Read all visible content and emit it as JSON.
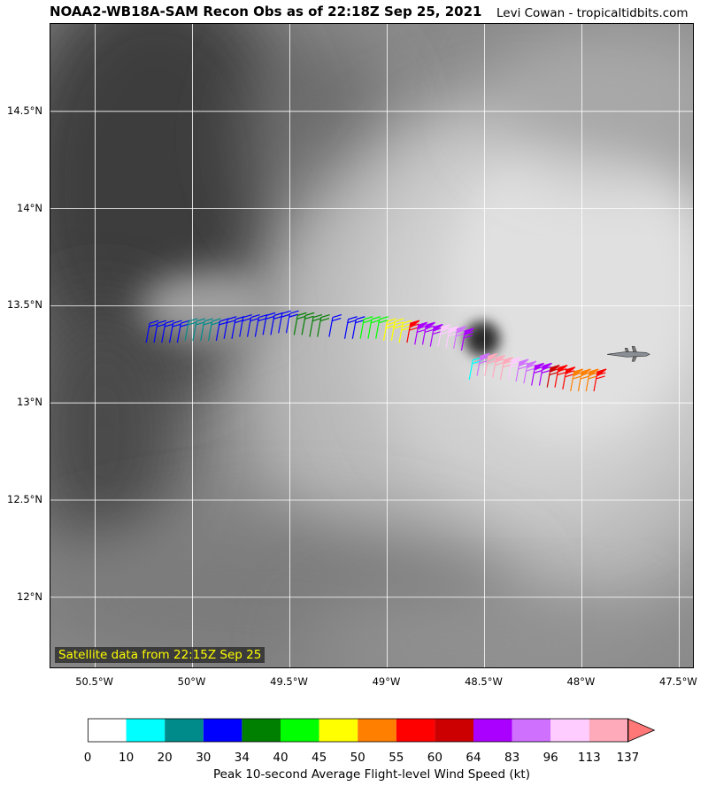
{
  "header": {
    "title": "NOAA2-WB18A-SAM Recon Obs as of 22:18Z Sep 25, 2021",
    "credit": "Levi Cowan - tropicaltidbits.com"
  },
  "map": {
    "satellite_note": "Satellite data from 22:15Z Sep 25",
    "lat_labels": [
      "14.5°N",
      "14°N",
      "13.5°N",
      "13°N",
      "12.5°N",
      "12°N"
    ],
    "lon_labels": [
      "50.5°W",
      "50°W",
      "49.5°W",
      "49°W",
      "48.5°W",
      "48°W",
      "47.5°W"
    ],
    "extent": {
      "lon_min": -50.73,
      "lon_max": -47.42,
      "lat_min": 11.63,
      "lat_max": 14.95
    },
    "grid": true,
    "eye_center": {
      "lon": -48.54,
      "lat": 13.33
    },
    "aircraft_icon": "aircraft-icon",
    "aircraft_position": {
      "lon": -47.77,
      "lat": 13.25
    }
  },
  "colorbar": {
    "title": "Peak 10-second Average Flight-level Wind Speed (kt)",
    "ticks": [
      "0",
      "10",
      "20",
      "30",
      "34",
      "40",
      "45",
      "50",
      "55",
      "60",
      "64",
      "83",
      "96",
      "113",
      "137"
    ],
    "colors": [
      "#ffffff",
      "#00ffff",
      "#008b8b",
      "#0000ff",
      "#008000",
      "#00ff00",
      "#ffff00",
      "#ff7f00",
      "#ff0000",
      "#cc0000",
      "#aa00ff",
      "#d070ff",
      "#ffccff",
      "#ffaabb",
      "#ff7777"
    ]
  },
  "chart_data": {
    "type": "wind_barbs",
    "observations": [
      {
        "lon": -50.22,
        "lat": 13.41,
        "bin": 3
      },
      {
        "lon": -50.18,
        "lat": 13.41,
        "bin": 3
      },
      {
        "lon": -50.14,
        "lat": 13.41,
        "bin": 3
      },
      {
        "lon": -50.1,
        "lat": 13.41,
        "bin": 3
      },
      {
        "lon": -50.06,
        "lat": 13.41,
        "bin": 3
      },
      {
        "lon": -50.02,
        "lat": 13.42,
        "bin": 2
      },
      {
        "lon": -49.98,
        "lat": 13.42,
        "bin": 2
      },
      {
        "lon": -49.94,
        "lat": 13.42,
        "bin": 2
      },
      {
        "lon": -49.9,
        "lat": 13.42,
        "bin": 2
      },
      {
        "lon": -49.86,
        "lat": 13.42,
        "bin": 3
      },
      {
        "lon": -49.82,
        "lat": 13.43,
        "bin": 3
      },
      {
        "lon": -49.78,
        "lat": 13.43,
        "bin": 3
      },
      {
        "lon": -49.74,
        "lat": 13.44,
        "bin": 3
      },
      {
        "lon": -49.7,
        "lat": 13.44,
        "bin": 3
      },
      {
        "lon": -49.66,
        "lat": 13.44,
        "bin": 3
      },
      {
        "lon": -49.62,
        "lat": 13.45,
        "bin": 3
      },
      {
        "lon": -49.58,
        "lat": 13.45,
        "bin": 3
      },
      {
        "lon": -49.54,
        "lat": 13.46,
        "bin": 3
      },
      {
        "lon": -49.5,
        "lat": 13.46,
        "bin": 3
      },
      {
        "lon": -49.46,
        "lat": 13.45,
        "bin": 4
      },
      {
        "lon": -49.42,
        "lat": 13.45,
        "bin": 4
      },
      {
        "lon": -49.38,
        "lat": 13.44,
        "bin": 4
      },
      {
        "lon": -49.34,
        "lat": 13.44,
        "bin": 4
      },
      {
        "lon": -49.28,
        "lat": 13.44,
        "bin": 3
      },
      {
        "lon": -49.2,
        "lat": 13.43,
        "bin": 3
      },
      {
        "lon": -49.16,
        "lat": 13.43,
        "bin": 3
      },
      {
        "lon": -49.12,
        "lat": 13.43,
        "bin": 5
      },
      {
        "lon": -49.08,
        "lat": 13.43,
        "bin": 5
      },
      {
        "lon": -49.04,
        "lat": 13.43,
        "bin": 5
      },
      {
        "lon": -49.0,
        "lat": 13.42,
        "bin": 6
      },
      {
        "lon": -48.96,
        "lat": 13.42,
        "bin": 6
      },
      {
        "lon": -48.92,
        "lat": 13.41,
        "bin": 6
      },
      {
        "lon": -48.88,
        "lat": 13.41,
        "bin": 8
      },
      {
        "lon": -48.84,
        "lat": 13.4,
        "bin": 10
      },
      {
        "lon": -48.8,
        "lat": 13.4,
        "bin": 10
      },
      {
        "lon": -48.76,
        "lat": 13.39,
        "bin": 10
      },
      {
        "lon": -48.72,
        "lat": 13.39,
        "bin": 12
      },
      {
        "lon": -48.68,
        "lat": 13.38,
        "bin": 12
      },
      {
        "lon": -48.64,
        "lat": 13.38,
        "bin": 11
      },
      {
        "lon": -48.6,
        "lat": 13.37,
        "bin": 10
      },
      {
        "lon": -48.56,
        "lat": 13.22,
        "bin": 1
      },
      {
        "lon": -48.52,
        "lat": 13.24,
        "bin": 11
      },
      {
        "lon": -48.48,
        "lat": 13.24,
        "bin": 13
      },
      {
        "lon": -48.44,
        "lat": 13.23,
        "bin": 13
      },
      {
        "lon": -48.4,
        "lat": 13.22,
        "bin": 13
      },
      {
        "lon": -48.36,
        "lat": 13.22,
        "bin": 12
      },
      {
        "lon": -48.32,
        "lat": 13.21,
        "bin": 11
      },
      {
        "lon": -48.28,
        "lat": 13.2,
        "bin": 11
      },
      {
        "lon": -48.24,
        "lat": 13.19,
        "bin": 10
      },
      {
        "lon": -48.2,
        "lat": 13.19,
        "bin": 10
      },
      {
        "lon": -48.16,
        "lat": 13.18,
        "bin": 9
      },
      {
        "lon": -48.12,
        "lat": 13.18,
        "bin": 8
      },
      {
        "lon": -48.08,
        "lat": 13.17,
        "bin": 8
      },
      {
        "lon": -48.04,
        "lat": 13.16,
        "bin": 7
      },
      {
        "lon": -48.0,
        "lat": 13.16,
        "bin": 7
      },
      {
        "lon": -47.96,
        "lat": 13.16,
        "bin": 7
      },
      {
        "lon": -47.92,
        "lat": 13.16,
        "bin": 8
      }
    ]
  }
}
